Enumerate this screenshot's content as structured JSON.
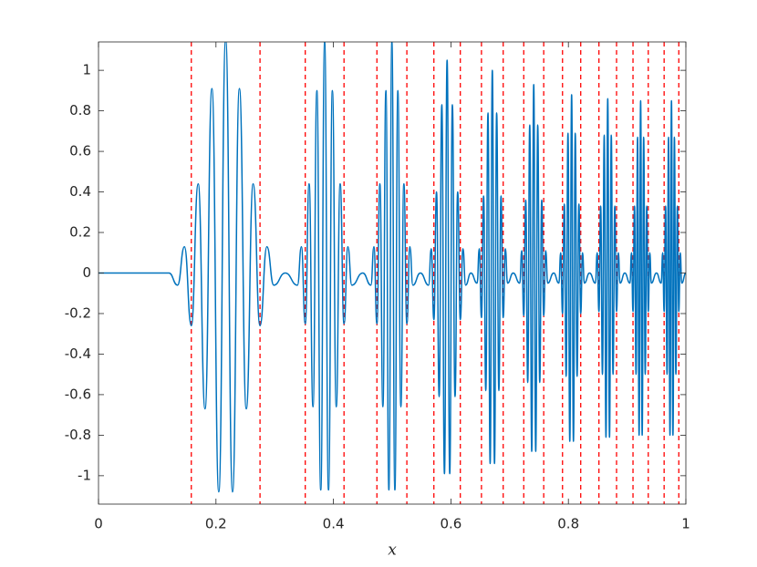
{
  "chart_data": {
    "type": "line",
    "x_label": "x",
    "xlim": [
      0,
      1
    ],
    "ylim": [
      -1.14,
      1.14
    ],
    "xticks": [
      0,
      0.2,
      0.4,
      0.6,
      0.8,
      1
    ],
    "yticks": [
      -1,
      -0.8,
      -0.6,
      -0.4,
      -0.2,
      0,
      0.2,
      0.4,
      0.6,
      0.8,
      1
    ],
    "grid": false,
    "vlines": {
      "color": "#ff0000",
      "style": "dashed",
      "values": [
        0.158,
        0.275,
        0.352,
        0.418,
        0.474,
        0.525,
        0.571,
        0.616,
        0.652,
        0.689,
        0.724,
        0.758,
        0.79,
        0.821,
        0.852,
        0.882,
        0.91,
        0.936,
        0.963,
        0.988
      ]
    },
    "x": [
      0,
      0.12,
      0.1346,
      0.1463,
      0.158,
      0.1697,
      0.1814,
      0.1931,
      0.2048,
      0.2165,
      0.2282,
      0.2399,
      0.2516,
      0.2633,
      0.275,
      0.2867,
      0.2984,
      0.318,
      0.3388,
      0.3454,
      0.352,
      0.3586,
      0.3652,
      0.3718,
      0.3784,
      0.385,
      0.3916,
      0.3982,
      0.4048,
      0.4114,
      0.418,
      0.4246,
      0.4312,
      0.45,
      0.4638,
      0.4689,
      0.474,
      0.4791,
      0.4842,
      0.4893,
      0.4944,
      0.4995,
      0.5046,
      0.5097,
      0.5148,
      0.5199,
      0.525,
      0.5301,
      0.5352,
      0.548,
      0.562,
      0.5665,
      0.571,
      0.5755,
      0.58,
      0.5845,
      0.589,
      0.5935,
      0.598,
      0.6025,
      0.607,
      0.6115,
      0.616,
      0.6205,
      0.625,
      0.634,
      0.6446,
      0.6483,
      0.652,
      0.6557,
      0.6594,
      0.6631,
      0.6668,
      0.6705,
      0.6742,
      0.6779,
      0.6816,
      0.6853,
      0.689,
      0.6927,
      0.6964,
      0.706,
      0.7172,
      0.7206,
      0.724,
      0.7274,
      0.7308,
      0.7342,
      0.7376,
      0.741,
      0.7444,
      0.7478,
      0.7512,
      0.7546,
      0.758,
      0.7614,
      0.7648,
      0.775,
      0.7838,
      0.7869,
      0.79,
      0.7931,
      0.7962,
      0.7993,
      0.8024,
      0.8055,
      0.8086,
      0.8117,
      0.8148,
      0.8179,
      0.821,
      0.8241,
      0.8272,
      0.836,
      0.846,
      0.849,
      0.852,
      0.855,
      0.858,
      0.861,
      0.864,
      0.867,
      0.87,
      0.873,
      0.876,
      0.879,
      0.882,
      0.885,
      0.888,
      0.896,
      0.9048,
      0.9074,
      0.91,
      0.9126,
      0.9152,
      0.9178,
      0.9204,
      0.923,
      0.9256,
      0.9282,
      0.9308,
      0.9334,
      0.936,
      0.9386,
      0.9412,
      0.95,
      0.958,
      0.9605,
      0.963,
      0.9655,
      0.968,
      0.9705,
      0.973,
      0.9755,
      0.978,
      0.9805,
      0.983,
      0.9855,
      0.988,
      0.9905,
      0.993,
      1
    ],
    "series": [
      {
        "color": "#0072bd",
        "values": [
          0,
          0,
          -0.06,
          0.13,
          -0.26,
          0.44,
          -0.67,
          0.91,
          -1.08,
          1.15,
          -1.08,
          0.91,
          -0.67,
          0.44,
          -0.26,
          0.13,
          -0.06,
          0,
          -0.06,
          0.13,
          -0.25,
          0.44,
          -0.66,
          0.9,
          -1.07,
          1.14,
          -1.07,
          0.9,
          -0.66,
          0.44,
          -0.25,
          0.13,
          -0.06,
          0,
          -0.06,
          0.13,
          -0.25,
          0.44,
          -0.66,
          0.9,
          -1.07,
          1.14,
          -1.07,
          0.9,
          -0.66,
          0.44,
          -0.25,
          0.13,
          -0.06,
          0,
          -0.06,
          0.12,
          -0.23,
          0.4,
          -0.61,
          0.83,
          -0.99,
          1.05,
          -0.99,
          0.83,
          -0.61,
          0.4,
          -0.23,
          0.12,
          -0.06,
          0,
          -0.05,
          0.12,
          -0.22,
          0.38,
          -0.58,
          0.79,
          -0.94,
          1,
          -0.94,
          0.79,
          -0.58,
          0.38,
          -0.22,
          0.12,
          -0.05,
          0,
          -0.05,
          0.11,
          -0.21,
          0.36,
          -0.54,
          0.73,
          -0.88,
          0.93,
          -0.88,
          0.73,
          -0.54,
          0.36,
          -0.21,
          0.11,
          -0.05,
          0,
          -0.05,
          0.1,
          -0.2,
          0.34,
          -0.51,
          0.69,
          -0.83,
          0.88,
          -0.83,
          0.69,
          -0.51,
          0.34,
          -0.2,
          0.1,
          -0.05,
          0,
          -0.05,
          0.1,
          -0.19,
          0.33,
          -0.5,
          0.68,
          -0.81,
          0.86,
          -0.81,
          0.68,
          -0.5,
          0.33,
          -0.19,
          0.1,
          -0.05,
          0,
          -0.05,
          0.1,
          -0.19,
          0.33,
          -0.5,
          0.67,
          -0.8,
          0.85,
          -0.8,
          0.67,
          -0.5,
          0.33,
          -0.19,
          0.1,
          -0.05,
          0,
          -0.05,
          0.1,
          -0.19,
          0.33,
          -0.5,
          0.67,
          -0.8,
          0.85,
          -0.8,
          0.67,
          -0.5,
          0.33,
          -0.19,
          0.1,
          -0.05,
          0
        ]
      }
    ]
  }
}
